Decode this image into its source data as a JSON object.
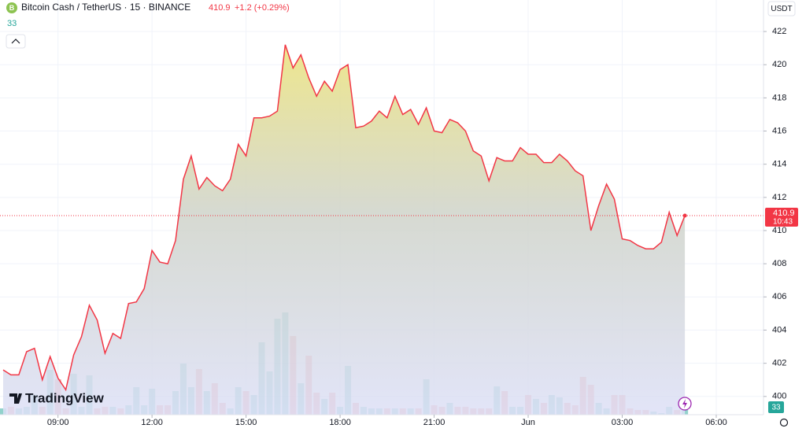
{
  "chart_data": {
    "type": "area",
    "title": "Bitcoin Cash / TetherUS · 15 · BINANCE",
    "last_price": "410.9",
    "change": "+1.2 (+0.29%)",
    "volume_label": "33",
    "currency": "USDT",
    "countdown": "10:43",
    "logo": "TradingView",
    "color": "#f23645",
    "series": [
      {
        "name": "Close",
        "color": "#f23645",
        "values": [
          401.6,
          401.3,
          401.3,
          402.7,
          402.9,
          401.0,
          402.4,
          401.1,
          400.4,
          402.5,
          403.6,
          405.5,
          404.6,
          402.6,
          403.8,
          403.5,
          405.6,
          405.7,
          406.5,
          408.8,
          408.1,
          408.0,
          409.4,
          413.1,
          414.5,
          412.5,
          413.2,
          412.7,
          412.4,
          413.1,
          415.2,
          414.5,
          416.8,
          416.8,
          416.9,
          417.2,
          421.2,
          419.8,
          420.6,
          419.2,
          418.1,
          419.0,
          418.4,
          419.7,
          420.0,
          416.2,
          416.3,
          416.6,
          417.2,
          416.8,
          418.1,
          417.0,
          417.3,
          416.4,
          417.4,
          416.0,
          415.9,
          416.7,
          416.5,
          416.0,
          414.8,
          414.5,
          413.0,
          414.4,
          414.2,
          414.2,
          415.0,
          414.6,
          414.6,
          414.1,
          414.1,
          414.6,
          414.2,
          413.6,
          413.3,
          410.0,
          411.5,
          412.8,
          411.9,
          409.5,
          409.4,
          409.1,
          408.9,
          408.9,
          409.3,
          411.1,
          409.7,
          410.9
        ]
      },
      {
        "name": "Volume",
        "values": [
          8,
          10,
          8,
          10,
          25,
          10,
          57,
          45,
          8,
          52,
          10,
          50,
          8,
          10,
          10,
          8,
          12,
          35,
          12,
          33,
          12,
          12,
          30,
          65,
          35,
          58,
          30,
          40,
          15,
          8,
          35,
          30,
          25,
          92,
          55,
          122,
          130,
          100,
          40,
          75,
          28,
          20,
          28,
          10,
          62,
          15,
          10,
          8,
          8,
          8,
          8,
          8,
          8,
          8,
          45,
          12,
          10,
          15,
          10,
          10,
          8,
          8,
          8,
          36,
          30,
          10,
          10,
          25,
          20,
          15,
          25,
          22,
          15,
          12,
          48,
          38,
          15,
          8,
          25,
          25,
          8,
          6,
          6,
          4,
          2,
          10,
          6,
          8
        ]
      }
    ],
    "ylim": [
      398.9,
      423.9
    ],
    "yticks": [
      400,
      402,
      404,
      406,
      408,
      410,
      412,
      414,
      416,
      418,
      420,
      422
    ],
    "xlim": [
      -0.4,
      97.03
    ],
    "xticks": [
      {
        "value": 7,
        "label": "09:00"
      },
      {
        "value": 19,
        "label": "12:00"
      },
      {
        "value": 31,
        "label": "15:00"
      },
      {
        "value": 43,
        "label": "18:00"
      },
      {
        "value": 55,
        "label": "21:00"
      },
      {
        "value": 67,
        "label": "Jun"
      },
      {
        "value": 79,
        "label": "03:00"
      },
      {
        "value": 91,
        "label": "06:00"
      }
    ]
  }
}
